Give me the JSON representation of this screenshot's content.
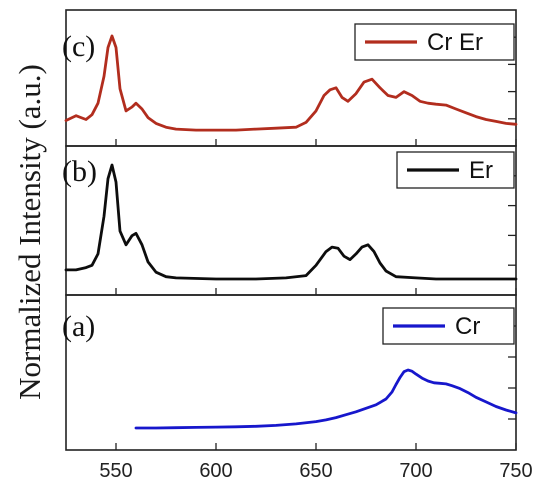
{
  "chart_data": {
    "type": "line",
    "ylabel": "Normalized Intensity (a.u.)",
    "xlim": [
      525,
      750
    ],
    "x_ticks": [
      550,
      600,
      650,
      700,
      750
    ],
    "panels": [
      {
        "label": "(c)",
        "series": [
          {
            "name": "Cr Er",
            "color": "#b22d1e",
            "x": [
              525,
              530,
              535,
              538,
              541,
              544,
              546,
              548,
              550,
              552,
              555,
              558,
              560,
              563,
              566,
              570,
              575,
              580,
              590,
              600,
              610,
              620,
              630,
              640,
              645,
              650,
              654,
              657,
              660,
              663,
              666,
              670,
              674,
              678,
              682,
              686,
              690,
              694,
              698,
              702,
              706,
              710,
              715,
              720,
              725,
              730,
              735,
              740,
              745,
              750
            ],
            "y": [
              0.12,
              0.17,
              0.13,
              0.18,
              0.3,
              0.58,
              0.88,
              1.0,
              0.88,
              0.45,
              0.22,
              0.26,
              0.3,
              0.24,
              0.15,
              0.09,
              0.05,
              0.03,
              0.02,
              0.02,
              0.02,
              0.03,
              0.04,
              0.05,
              0.1,
              0.22,
              0.38,
              0.44,
              0.46,
              0.36,
              0.32,
              0.4,
              0.52,
              0.55,
              0.46,
              0.38,
              0.36,
              0.42,
              0.38,
              0.32,
              0.3,
              0.29,
              0.28,
              0.24,
              0.2,
              0.16,
              0.13,
              0.11,
              0.09,
              0.08
            ]
          }
        ]
      },
      {
        "label": "(b)",
        "series": [
          {
            "name": "Er",
            "color": "#0d0d0d",
            "x": [
              525,
              530,
              535,
              538,
              541,
              544,
              546,
              548,
              550,
              552,
              555,
              558,
              560,
              563,
              566,
              570,
              575,
              580,
              600,
              620,
              635,
              645,
              650,
              655,
              658,
              661,
              664,
              667,
              670,
              673,
              676,
              679,
              682,
              685,
              690,
              700,
              710,
              720,
              735,
              750
            ],
            "y": [
              0.08,
              0.08,
              0.1,
              0.12,
              0.22,
              0.55,
              0.88,
              1.0,
              0.85,
              0.42,
              0.3,
              0.38,
              0.4,
              0.3,
              0.15,
              0.06,
              0.02,
              0.01,
              0.0,
              0.0,
              0.01,
              0.03,
              0.12,
              0.24,
              0.28,
              0.27,
              0.2,
              0.17,
              0.22,
              0.28,
              0.3,
              0.24,
              0.14,
              0.07,
              0.02,
              0.01,
              0.0,
              0.0,
              0.0,
              0.0
            ]
          }
        ]
      },
      {
        "label": "(a)",
        "series": [
          {
            "name": "Cr",
            "color": "#1717cc",
            "x": [
              560,
              570,
              580,
              590,
              600,
              610,
              620,
              630,
              640,
              650,
              655,
              660,
              665,
              670,
              675,
              680,
              685,
              688,
              690,
              692,
              694,
              696,
              698,
              700,
              703,
              706,
              709,
              712,
              715,
              718,
              722,
              726,
              730,
              735,
              740,
              745,
              750
            ],
            "y": [
              0.0,
              0.0,
              0.005,
              0.01,
              0.015,
              0.02,
              0.03,
              0.045,
              0.07,
              0.11,
              0.14,
              0.18,
              0.23,
              0.28,
              0.34,
              0.4,
              0.5,
              0.62,
              0.75,
              0.87,
              0.97,
              1.0,
              0.98,
              0.93,
              0.86,
              0.81,
              0.78,
              0.77,
              0.76,
              0.73,
              0.68,
              0.61,
              0.53,
              0.45,
              0.37,
              0.31,
              0.26
            ]
          }
        ]
      }
    ],
    "legend_position": "top-right",
    "grid": false
  }
}
